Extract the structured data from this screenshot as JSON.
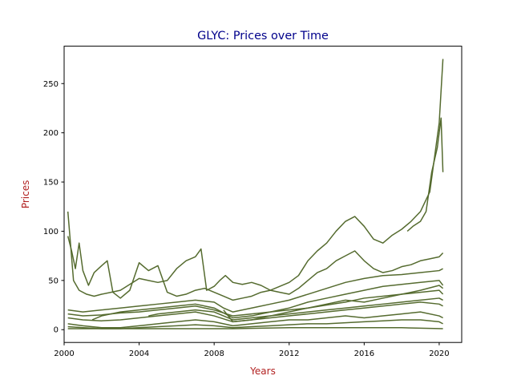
{
  "chart_data": {
    "type": "line",
    "title": "GLYC: Prices over Time",
    "xlabel": "Years",
    "ylabel": "Prices",
    "xlim": [
      2000.0,
      2021.2
    ],
    "ylim": [
      -13,
      288
    ],
    "x_ticks": [
      2000,
      2004,
      2008,
      2012,
      2016,
      2020
    ],
    "x_tick_labels": [
      "2000",
      "2004",
      "2008",
      "2012",
      "2016",
      "2020"
    ],
    "y_ticks": [
      0,
      50,
      100,
      150,
      200,
      250
    ],
    "y_tick_labels": [
      "0",
      "50",
      "100",
      "150",
      "200",
      "250"
    ],
    "grid": false,
    "legend": "none",
    "colors": {
      "series": "#556b2f",
      "title": "#00008b",
      "axis_label": "#b22222",
      "axis": "#000000"
    },
    "series": [
      {
        "x": [
          2000.2,
          2000.4,
          2000.6,
          2000.8,
          2001.0,
          2001.3,
          2001.6,
          2002.0,
          2002.3,
          2002.6,
          2003.0,
          2003.5,
          2004.0,
          2004.5,
          2005.0,
          2005.5,
          2006.0,
          2006.5,
          2007.0,
          2007.5,
          2008.0,
          2008.5,
          2009.0,
          2009.5,
          2010.0,
          2010.5,
          2011.0,
          2011.5,
          2012.0,
          2012.5,
          2013.0,
          2013.5,
          2014.0,
          2014.5,
          2015.0,
          2015.5,
          2016.0,
          2016.5,
          2017.0,
          2017.5,
          2018.0,
          2018.5,
          2019.0,
          2019.5,
          2020.0,
          2020.2
        ],
        "y": [
          95,
          80,
          62,
          88,
          60,
          45,
          58,
          65,
          70,
          38,
          32,
          40,
          68,
          60,
          65,
          38,
          34,
          36,
          40,
          42,
          38,
          34,
          30,
          32,
          34,
          38,
          40,
          44,
          48,
          55,
          70,
          80,
          88,
          100,
          110,
          115,
          105,
          92,
          88,
          96,
          102,
          110,
          120,
          140,
          210,
          275
        ]
      },
      {
        "x": [
          2000.2,
          2000.5,
          2000.8,
          2001.2,
          2001.6,
          2002.0,
          2002.5,
          2003.0,
          2003.5,
          2004.0,
          2004.5,
          2005.0,
          2005.5,
          2006.0,
          2006.5,
          2007.0,
          2007.3,
          2007.6,
          2008.0,
          2008.3,
          2008.6,
          2009.0,
          2009.5,
          2010.0,
          2010.5,
          2011.0,
          2011.5,
          2012.0,
          2012.5,
          2013.0,
          2013.5,
          2014.0,
          2014.5,
          2015.0,
          2015.5,
          2016.0,
          2016.5,
          2017.0,
          2017.5,
          2018.0,
          2018.5,
          2019.0,
          2019.5,
          2020.0,
          2020.2
        ],
        "y": [
          120,
          50,
          40,
          36,
          34,
          36,
          38,
          40,
          46,
          52,
          50,
          48,
          50,
          62,
          70,
          74,
          82,
          40,
          44,
          50,
          55,
          48,
          46,
          48,
          45,
          40,
          38,
          36,
          42,
          50,
          58,
          62,
          70,
          75,
          80,
          70,
          62,
          58,
          60,
          64,
          66,
          70,
          72,
          74,
          78
        ]
      },
      {
        "x": [
          2000.2,
          2001.0,
          2002.0,
          2003.0,
          2004.0,
          2005.0,
          2006.0,
          2007.0,
          2008.0,
          2008.5,
          2009.0,
          2010.0,
          2011.0,
          2012.0,
          2013.0,
          2014.0,
          2015.0,
          2016.0,
          2017.0,
          2018.0,
          2019.0,
          2020.0,
          2020.2
        ],
        "y": [
          20,
          18,
          20,
          22,
          24,
          26,
          28,
          30,
          28,
          22,
          18,
          22,
          26,
          30,
          36,
          42,
          48,
          52,
          55,
          56,
          58,
          60,
          62
        ]
      },
      {
        "x": [
          2000.2,
          2001.0,
          2002.0,
          2003.0,
          2004.0,
          2005.0,
          2006.0,
          2007.0,
          2008.0,
          2009.0,
          2010.0,
          2011.0,
          2012.0,
          2013.0,
          2014.0,
          2015.0,
          2016.0,
          2017.0,
          2018.0,
          2019.0,
          2020.0,
          2020.2
        ],
        "y": [
          16,
          14,
          15,
          17,
          18,
          20,
          22,
          24,
          20,
          14,
          16,
          18,
          20,
          22,
          25,
          28,
          32,
          34,
          36,
          38,
          40,
          36
        ]
      },
      {
        "x": [
          2000.2,
          2001.0,
          2002.0,
          2003.0,
          2004.0,
          2005.0,
          2006.0,
          2007.0,
          2008.0,
          2009.0,
          2010.0,
          2011.0,
          2012.0,
          2013.0,
          2014.0,
          2015.0,
          2016.0,
          2017.0,
          2018.0,
          2019.0,
          2020.0,
          2020.2
        ],
        "y": [
          12,
          10,
          9,
          10,
          12,
          14,
          16,
          18,
          14,
          8,
          10,
          12,
          14,
          16,
          18,
          20,
          22,
          24,
          26,
          28,
          26,
          24
        ]
      },
      {
        "x": [
          2000.2,
          2001.0,
          2002.0,
          2003.0,
          2004.0,
          2005.0,
          2006.0,
          2007.0,
          2008.0,
          2009.0,
          2010.0,
          2011.0,
          2012.0,
          2013.0,
          2014.0,
          2015.0,
          2016.0,
          2017.0,
          2018.0,
          2019.0,
          2020.0,
          2020.2
        ],
        "y": [
          6,
          4,
          2,
          2,
          4,
          6,
          8,
          10,
          8,
          4,
          6,
          8,
          10,
          10,
          12,
          14,
          12,
          14,
          16,
          18,
          14,
          12
        ]
      },
      {
        "x": [
          2000.2,
          2001.0,
          2002.0,
          2003.0,
          2004.0,
          2005.0,
          2006.0,
          2007.0,
          2008.0,
          2009.0,
          2010.0,
          2011.0,
          2012.0,
          2013.0,
          2014.0,
          2015.0,
          2016.0,
          2017.0,
          2018.0,
          2019.0,
          2020.0,
          2020.2
        ],
        "y": [
          3,
          2,
          1,
          1,
          2,
          3,
          4,
          5,
          4,
          2,
          3,
          4,
          5,
          6,
          6,
          7,
          8,
          9,
          10,
          10,
          8,
          6
        ]
      },
      {
        "x": [
          2001.5,
          2002.0,
          2003.0,
          2004.0,
          2005.0,
          2006.0,
          2007.0,
          2008.0,
          2009.0,
          2010.0,
          2011.0,
          2012.0,
          2013.0,
          2014.0,
          2015.0,
          2016.0,
          2017.0,
          2018.0,
          2019.0,
          2020.0,
          2020.2
        ],
        "y": [
          10,
          14,
          18,
          20,
          22,
          24,
          26,
          22,
          12,
          14,
          18,
          22,
          28,
          32,
          36,
          40,
          44,
          46,
          48,
          50,
          45
        ]
      },
      {
        "x": [
          2004.5,
          2005.0,
          2006.0,
          2007.0,
          2008.0,
          2009.0,
          2010.0,
          2011.0,
          2012.0,
          2013.0,
          2014.0,
          2015.0,
          2016.0,
          2017.0,
          2018.0,
          2019.0,
          2020.0,
          2020.2
        ],
        "y": [
          14,
          16,
          18,
          20,
          18,
          10,
          12,
          14,
          16,
          18,
          20,
          22,
          24,
          26,
          28,
          30,
          32,
          30
        ]
      },
      {
        "x": [
          2008.5,
          2009.0,
          2010.0,
          2011.0,
          2012.0,
          2013.0,
          2014.0,
          2015.0,
          2016.0,
          2017.0,
          2018.0,
          2019.0,
          2020.0,
          2020.2
        ],
        "y": [
          20,
          8,
          10,
          14,
          18,
          22,
          26,
          30,
          28,
          32,
          36,
          40,
          45,
          42
        ]
      },
      {
        "x": [
          2018.3,
          2018.6,
          2019.0,
          2019.3,
          2019.6,
          2019.9,
          2020.1,
          2020.2
        ],
        "y": [
          100,
          105,
          110,
          120,
          160,
          185,
          215,
          160
        ]
      },
      {
        "x": [
          2000.2,
          2003.0,
          2006.0,
          2009.0,
          2012.0,
          2015.0,
          2018.0,
          2020.2
        ],
        "y": [
          1,
          1,
          1,
          1,
          2,
          2,
          2,
          1
        ]
      }
    ]
  }
}
